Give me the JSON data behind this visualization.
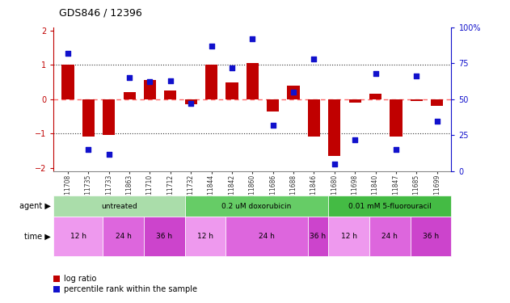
{
  "title": "GDS846 / 12396",
  "samples": [
    "GSM11708",
    "GSM11735",
    "GSM11733",
    "GSM11863",
    "GSM11710",
    "GSM11712",
    "GSM11732",
    "GSM11844",
    "GSM11842",
    "GSM11860",
    "GSM11686",
    "GSM11688",
    "GSM11846",
    "GSM11680",
    "GSM11698",
    "GSM11840",
    "GSM11847",
    "GSM11685",
    "GSM11699"
  ],
  "log_ratio": [
    1.0,
    -1.1,
    -1.05,
    0.2,
    0.55,
    0.25,
    -0.15,
    1.0,
    0.5,
    1.05,
    -0.35,
    0.4,
    -1.1,
    -1.65,
    -0.1,
    0.15,
    -1.1,
    -0.05,
    -0.2
  ],
  "percentile": [
    82,
    15,
    12,
    65,
    62,
    63,
    47,
    87,
    72,
    92,
    32,
    55,
    78,
    5,
    22,
    68,
    15,
    66,
    35
  ],
  "ylim_left": [
    -2.1,
    2.1
  ],
  "ylim_right": [
    0,
    100
  ],
  "yticks_left": [
    -2,
    -1,
    0,
    1,
    2
  ],
  "yticks_right": [
    0,
    25,
    50,
    75,
    100
  ],
  "bar_color": "#C00000",
  "dot_color": "#1111CC",
  "zero_line_color": "#FF6666",
  "dotted_line_color": "#333333",
  "agents": [
    {
      "label": "untreated",
      "start": 0,
      "end": 5,
      "color": "#AADDAA"
    },
    {
      "label": "0.2 uM doxorubicin",
      "start": 6,
      "end": 12,
      "color": "#66CC66"
    },
    {
      "label": "0.01 mM 5-fluorouracil",
      "start": 13,
      "end": 18,
      "color": "#44BB44"
    }
  ],
  "times": [
    {
      "label": "12 h",
      "start": 0,
      "end": 1,
      "color": "#EE99EE"
    },
    {
      "label": "24 h",
      "start": 2,
      "end": 3,
      "color": "#DD66DD"
    },
    {
      "label": "36 h",
      "start": 4,
      "end": 5,
      "color": "#CC44CC"
    },
    {
      "label": "12 h",
      "start": 6,
      "end": 7,
      "color": "#EE99EE"
    },
    {
      "label": "24 h",
      "start": 8,
      "end": 10,
      "color": "#DD66DD"
    },
    {
      "label": "36 h",
      "start": 11,
      "end": 12,
      "color": "#CC44CC"
    },
    {
      "label": "12 h",
      "start": 13,
      "end": 14,
      "color": "#EE99EE"
    },
    {
      "label": "24 h",
      "start": 15,
      "end": 16,
      "color": "#DD66DD"
    },
    {
      "label": "36 h",
      "start": 17,
      "end": 18,
      "color": "#CC44CC"
    }
  ],
  "agent_label": "agent",
  "time_label": "time",
  "legend_items": [
    {
      "label": "log ratio",
      "color": "#C00000"
    },
    {
      "label": "percentile rank within the sample",
      "color": "#1111CC"
    }
  ],
  "bg_color": "#FFFFFF",
  "tick_color_left": "#C00000",
  "tick_color_right": "#1111CC",
  "bar_width": 0.6,
  "figsize": [
    6.31,
    3.75
  ],
  "dpi": 100
}
